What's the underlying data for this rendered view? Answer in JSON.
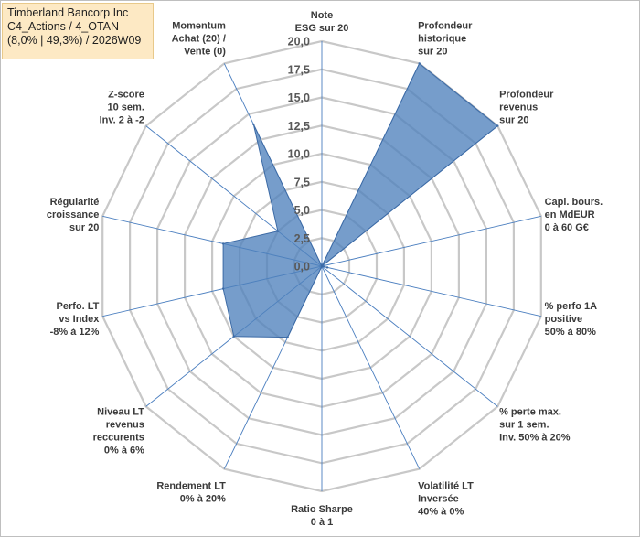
{
  "info": {
    "line1": "Timberland Bancorp Inc",
    "line2": "C4_Actions / 4_OTAN",
    "line3": "(8,0% | 49,3%) / 2026W09"
  },
  "chart_data": {
    "type": "radar",
    "range": [
      0,
      20
    ],
    "ticks": [
      "0,0",
      "2,5",
      "5,0",
      "7,5",
      "10,0",
      "12,5",
      "15,0",
      "17,5",
      "20,0"
    ],
    "tick_values": [
      0,
      2.5,
      5,
      7.5,
      10,
      12.5,
      15,
      17.5,
      20
    ],
    "axes": [
      [
        "Note",
        "ESG sur 20"
      ],
      [
        "Profondeur",
        "historique",
        "sur 20"
      ],
      [
        "Profondeur",
        "revenus",
        "sur 20"
      ],
      [
        "Capi. bours.",
        "en MdEUR",
        "0 à 60 G€"
      ],
      [
        "% perfo 1A",
        "positive",
        "50% à 80%"
      ],
      [
        "% perte max.",
        "sur 1 sem.",
        "Inv. 50% à 20%"
      ],
      [
        "Volatilité LT",
        "Inversée",
        "40% à 0%"
      ],
      [
        "Ratio Sharpe",
        "0 à 1"
      ],
      [
        "Rendement LT",
        "0% à 20%"
      ],
      [
        "Niveau LT",
        "revenus",
        "reccurents",
        "0% à 6%"
      ],
      [
        "Perfo. LT",
        "vs Index",
        "-8% à 12%"
      ],
      [
        "Régularité",
        "croissance",
        "sur 20"
      ],
      [
        "Z-score",
        "10 sem.",
        "Inv. 2 à -2"
      ],
      [
        "Momentum",
        "Achat (20) /",
        "Vente (0)"
      ]
    ],
    "series": [
      {
        "values": [
          0,
          20,
          20,
          0,
          0.5,
          0,
          0,
          0,
          7,
          10,
          9,
          9,
          5,
          14
        ],
        "color": "#4f81bd"
      }
    ],
    "grid": true,
    "legend": "none"
  }
}
